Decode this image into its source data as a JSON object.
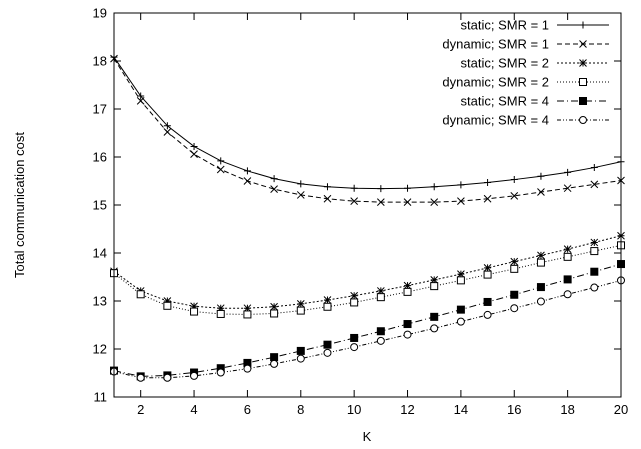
{
  "chart_data": {
    "type": "line",
    "title": "",
    "xlabel": "K",
    "ylabel": "Total communication cost",
    "xlim": [
      1,
      20
    ],
    "ylim": [
      11,
      19
    ],
    "xticks": [
      2,
      4,
      6,
      8,
      10,
      12,
      14,
      16,
      18,
      20
    ],
    "yticks": [
      11,
      12,
      13,
      14,
      15,
      16,
      17,
      18,
      19
    ],
    "grid": false,
    "legend_position": "top-right",
    "x": [
      1,
      2,
      3,
      4,
      5,
      6,
      7,
      8,
      9,
      10,
      11,
      12,
      13,
      14,
      15,
      16,
      17,
      18,
      19,
      20
    ],
    "series": [
      {
        "name": "static; SMR = 1",
        "marker": "plus",
        "dash": "",
        "values": [
          18.08,
          17.27,
          16.65,
          16.22,
          15.92,
          15.71,
          15.55,
          15.44,
          15.38,
          15.35,
          15.34,
          15.35,
          15.38,
          15.42,
          15.47,
          15.53,
          15.6,
          15.68,
          15.78,
          15.9
        ]
      },
      {
        "name": "dynamic; SMR = 1",
        "marker": "cross",
        "dash": "5,3",
        "values": [
          18.05,
          17.17,
          16.52,
          16.06,
          15.74,
          15.5,
          15.33,
          15.21,
          15.13,
          15.08,
          15.06,
          15.06,
          15.06,
          15.08,
          15.13,
          15.19,
          15.27,
          15.35,
          15.43,
          15.51
        ]
      },
      {
        "name": "static; SMR = 2",
        "marker": "star",
        "dash": "2,2",
        "values": [
          13.62,
          13.21,
          13.0,
          12.89,
          12.85,
          12.85,
          12.88,
          12.94,
          13.02,
          13.11,
          13.21,
          13.32,
          13.44,
          13.56,
          13.69,
          13.82,
          13.95,
          14.08,
          14.22,
          14.36
        ]
      },
      {
        "name": "dynamic; SMR = 2",
        "marker": "square-open",
        "dash": "1,2",
        "values": [
          13.58,
          13.14,
          12.9,
          12.78,
          12.73,
          12.72,
          12.74,
          12.8,
          12.88,
          12.97,
          13.08,
          13.19,
          13.31,
          13.43,
          13.55,
          13.67,
          13.8,
          13.92,
          14.04,
          14.16
        ]
      },
      {
        "name": "static; SMR = 4",
        "marker": "square-filled",
        "dash": "7,3,1,3",
        "values": [
          11.55,
          11.43,
          11.45,
          11.51,
          11.6,
          11.71,
          11.83,
          11.96,
          12.09,
          12.23,
          12.37,
          12.52,
          12.67,
          12.82,
          12.98,
          13.13,
          13.29,
          13.45,
          13.61,
          13.77
        ]
      },
      {
        "name": "dynamic; SMR = 4",
        "marker": "circle-open",
        "dash": "4,2,1,2,1,2",
        "values": [
          11.53,
          11.4,
          11.4,
          11.44,
          11.51,
          11.59,
          11.69,
          11.8,
          11.92,
          12.04,
          12.17,
          12.3,
          12.43,
          12.57,
          12.71,
          12.85,
          12.99,
          13.14,
          13.28,
          13.43
        ]
      }
    ]
  }
}
